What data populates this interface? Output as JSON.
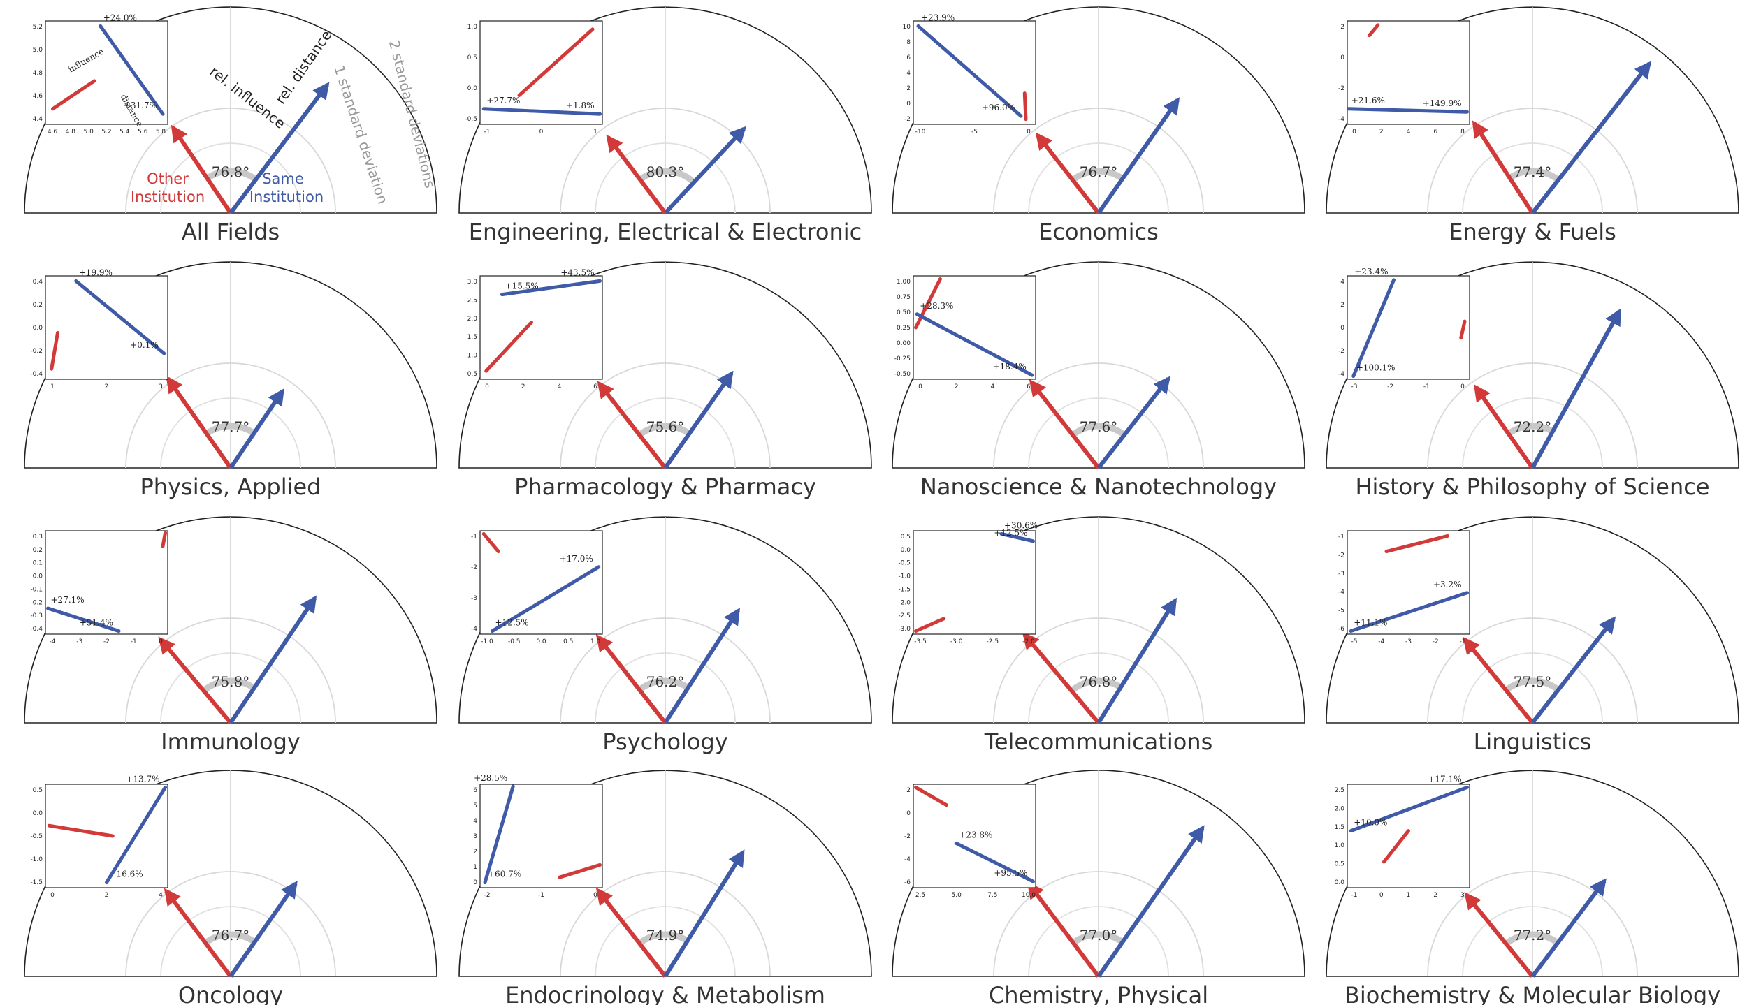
{
  "colors": {
    "other_institution": "#d23a3a",
    "same_institution": "#3f5aa6",
    "arc": "#222222",
    "guide": "#cccccc",
    "deviation_text": "#9a9a9a"
  },
  "legend": {
    "other_line1": "Other",
    "other_line2": "Institution",
    "same_line1": "Same",
    "same_line2": "Institution",
    "rel_influence": "rel. influence",
    "rel_distance": "rel. distance",
    "one_sd": "1 standard deviation",
    "two_sd": "2 standard deviations",
    "inset_influence": "influence",
    "inset_distance": "distance"
  },
  "chart_data": [
    {
      "type": "polar-arrows",
      "title": "All Fields",
      "angle_label": "76.8°",
      "other_deg": 124,
      "other_len": 0.5,
      "same_deg": 53,
      "same_len": 0.78,
      "inset": {
        "xticks": [
          "4.6",
          "4.8",
          "5.0",
          "5.2",
          "5.4",
          "5.6",
          "5.8"
        ],
        "yticks": [
          "4.4",
          "4.6",
          "4.8",
          "5.0",
          "5.2"
        ],
        "red_line": [
          [
            0.06,
            0.85
          ],
          [
            0.4,
            0.58
          ]
        ],
        "blue_line": [
          [
            0.45,
            0.05
          ],
          [
            0.96,
            0.9
          ]
        ],
        "pct": [
          "+24.0%",
          "+31.7%"
        ]
      }
    },
    {
      "type": "polar-arrows",
      "title": "Engineering, Electrical & Electronic",
      "angle_label": "80.3°",
      "other_deg": 127,
      "other_len": 0.46,
      "same_deg": 47,
      "same_len": 0.56,
      "inset": {
        "xticks": [
          "-1",
          "0",
          "1"
        ],
        "yticks": [
          "-0.5",
          "0.0",
          "0.5",
          "1.0"
        ],
        "red_line": [
          [
            0.32,
            0.72
          ],
          [
            0.92,
            0.08
          ]
        ],
        "blue_line": [
          [
            0.03,
            0.85
          ],
          [
            0.98,
            0.9
          ]
        ],
        "pct": [
          "+27.7%",
          "+1.8%"
        ]
      }
    },
    {
      "type": "polar-arrows",
      "title": "Economics",
      "angle_label": "76.7°",
      "other_deg": 128,
      "other_len": 0.48,
      "same_deg": 55,
      "same_len": 0.67,
      "inset": {
        "xticks": [
          "-10",
          "-5",
          "0"
        ],
        "yticks": [
          "-2",
          "0",
          "2",
          "4",
          "6",
          "8",
          "10"
        ],
        "red_line": [
          [
            0.91,
            0.7
          ],
          [
            0.92,
            0.95
          ]
        ],
        "blue_line": [
          [
            0.04,
            0.05
          ],
          [
            0.88,
            0.92
          ]
        ],
        "pct": [
          "+23.9%",
          "+96.0%"
        ]
      }
    },
    {
      "type": "polar-arrows",
      "title": "Energy & Fuels",
      "angle_label": "77.4°",
      "other_deg": 123,
      "other_len": 0.52,
      "same_deg": 52,
      "same_len": 0.92,
      "inset": {
        "xticks": [
          "0",
          "2",
          "4",
          "6",
          "8"
        ],
        "yticks": [
          "-4",
          "-2",
          "0",
          "2"
        ],
        "red_line": [
          [
            0.18,
            0.14
          ],
          [
            0.25,
            0.04
          ]
        ],
        "blue_line": [
          [
            0.01,
            0.85
          ],
          [
            0.98,
            0.88
          ]
        ],
        "pct": [
          "+21.6%",
          "+149.9%"
        ]
      }
    },
    {
      "type": "polar-arrows",
      "title": "Physics, Applied",
      "angle_label": "77.7°",
      "other_deg": 125,
      "other_len": 0.53,
      "same_deg": 56,
      "same_len": 0.45,
      "inset": {
        "xticks": [
          "1",
          "2",
          "3"
        ],
        "yticks": [
          "-0.4",
          "-0.2",
          "0.0",
          "0.2",
          "0.4"
        ],
        "red_line": [
          [
            0.05,
            0.9
          ],
          [
            0.1,
            0.55
          ]
        ],
        "blue_line": [
          [
            0.25,
            0.05
          ],
          [
            0.97,
            0.75
          ]
        ],
        "pct": [
          "+19.9%",
          "+0.1%"
        ]
      }
    },
    {
      "type": "polar-arrows",
      "title": "Pharmacology & Pharmacy",
      "angle_label": "75.6°",
      "other_deg": 128,
      "other_len": 0.52,
      "same_deg": 55,
      "same_len": 0.56,
      "inset": {
        "xticks": [
          "0",
          "2",
          "4",
          "6"
        ],
        "yticks": [
          "0.5",
          "1.0",
          "1.5",
          "2.0",
          "2.5",
          "3.0"
        ],
        "red_line": [
          [
            0.05,
            0.92
          ],
          [
            0.42,
            0.45
          ]
        ],
        "blue_line": [
          [
            0.18,
            0.18
          ],
          [
            0.98,
            0.05
          ]
        ],
        "pct": [
          "+15.5%",
          "+43.5%"
        ]
      }
    },
    {
      "type": "polar-arrows",
      "title": "Nanoscience & Nanotechnology",
      "angle_label": "77.6°",
      "other_deg": 128,
      "other_len": 0.53,
      "same_deg": 52,
      "same_len": 0.55,
      "inset": {
        "xticks": [
          "0",
          "2",
          "4",
          "6"
        ],
        "yticks": [
          "-0.50",
          "-0.25",
          "0.00",
          "0.25",
          "0.50",
          "0.75",
          "1.00"
        ],
        "red_line": [
          [
            0.02,
            0.5
          ],
          [
            0.22,
            0.03
          ]
        ],
        "blue_line": [
          [
            0.03,
            0.37
          ],
          [
            0.97,
            0.96
          ]
        ],
        "pct": [
          "+28.3%",
          "+18.4%"
        ]
      }
    },
    {
      "type": "polar-arrows",
      "title": "History & Philosophy of Science",
      "angle_label": "72.2°",
      "other_deg": 125,
      "other_len": 0.48,
      "same_deg": 61,
      "same_len": 0.87,
      "inset": {
        "xticks": [
          "-3",
          "-2",
          "-1",
          "0"
        ],
        "yticks": [
          "-4",
          "-2",
          "0",
          "2",
          "4"
        ],
        "red_line": [
          [
            0.93,
            0.6
          ],
          [
            0.96,
            0.44
          ]
        ],
        "blue_line": [
          [
            0.05,
            0.97
          ],
          [
            0.38,
            0.04
          ]
        ],
        "pct": [
          "+100.1%",
          "+23.4%"
        ]
      }
    },
    {
      "type": "polar-arrows",
      "title": "Immunology",
      "angle_label": "75.8°",
      "other_deg": 130,
      "other_len": 0.53,
      "same_deg": 56,
      "same_len": 0.73,
      "inset": {
        "xticks": [
          "-4",
          "-3",
          "-2",
          "-1",
          "0"
        ],
        "yticks": [
          "-0.4",
          "-0.3",
          "-0.2",
          "-0.1",
          "0.0",
          "0.1",
          "0.2",
          "0.3"
        ],
        "red_line": [
          [
            0.96,
            0.15
          ],
          [
            0.98,
            0.02
          ]
        ],
        "blue_line": [
          [
            0.02,
            0.75
          ],
          [
            0.6,
            0.97
          ]
        ],
        "pct": [
          "+27.1%",
          "+51.4%"
        ]
      }
    },
    {
      "type": "polar-arrows",
      "title": "Psychology",
      "angle_label": "76.2°",
      "other_deg": 128,
      "other_len": 0.53,
      "same_deg": 57,
      "same_len": 0.65,
      "inset": {
        "xticks": [
          "-1.0",
          "-0.5",
          "0.0",
          "0.5",
          "1.0"
        ],
        "yticks": [
          "-4",
          "-3",
          "-2",
          "-1"
        ],
        "red_line": [
          [
            0.03,
            0.03
          ],
          [
            0.15,
            0.2
          ]
        ],
        "blue_line": [
          [
            0.1,
            0.97
          ],
          [
            0.97,
            0.35
          ]
        ],
        "pct": [
          "+12.5%",
          "+17.0%"
        ]
      }
    },
    {
      "type": "polar-arrows",
      "title": "Telecommunications",
      "angle_label": "76.8°",
      "other_deg": 130,
      "other_len": 0.56,
      "same_deg": 58,
      "same_len": 0.7,
      "inset": {
        "xticks": [
          "-3.5",
          "-3.0",
          "-2.5",
          "-2.0"
        ],
        "yticks": [
          "-3.0",
          "-2.5",
          "-2.0",
          "-1.5",
          "-1.0",
          "-0.5",
          "0.0",
          "0.5"
        ],
        "red_line": [
          [
            0.02,
            0.97
          ],
          [
            0.25,
            0.85
          ]
        ],
        "blue_line": [
          [
            0.72,
            0.03
          ],
          [
            0.98,
            0.1
          ]
        ],
        "pct": [
          "+30.6%",
          "+12.5%"
        ]
      }
    },
    {
      "type": "polar-arrows",
      "title": "Linguistics",
      "angle_label": "77.5°",
      "other_deg": 129,
      "other_len": 0.52,
      "same_deg": 52,
      "same_len": 0.64,
      "inset": {
        "xticks": [
          "-5",
          "-4",
          "-3",
          "-2",
          "-1"
        ],
        "yticks": [
          "-6",
          "-5",
          "-4",
          "-3",
          "-2",
          "-1"
        ],
        "red_line": [
          [
            0.32,
            0.2
          ],
          [
            0.82,
            0.05
          ]
        ],
        "blue_line": [
          [
            0.03,
            0.97
          ],
          [
            0.98,
            0.6
          ]
        ],
        "pct": [
          "+11.1%",
          "+3.2%"
        ]
      }
    },
    {
      "type": "polar-arrows",
      "title": "Oncology",
      "angle_label": "76.7°",
      "other_deg": 127,
      "other_len": 0.52,
      "same_deg": 55,
      "same_len": 0.55,
      "inset": {
        "xticks": [
          "0",
          "2",
          "4"
        ],
        "yticks": [
          "-1.5",
          "-1.0",
          "-0.5",
          "0.0",
          "0.5"
        ],
        "red_line": [
          [
            0.03,
            0.4
          ],
          [
            0.55,
            0.5
          ]
        ],
        "blue_line": [
          [
            0.5,
            0.95
          ],
          [
            0.98,
            0.03
          ]
        ],
        "pct": [
          "+16.6%",
          "+13.7%"
        ]
      }
    },
    {
      "type": "polar-arrows",
      "title": "Endocrinology & Metabolism",
      "angle_label": "74.9°",
      "other_deg": 128,
      "other_len": 0.53,
      "same_deg": 58,
      "same_len": 0.71,
      "inset": {
        "xticks": [
          "-2",
          "-1",
          "0"
        ],
        "yticks": [
          "0",
          "1",
          "2",
          "3",
          "4",
          "5",
          "6"
        ],
        "red_line": [
          [
            0.65,
            0.9
          ],
          [
            0.98,
            0.78
          ]
        ],
        "blue_line": [
          [
            0.04,
            0.95
          ],
          [
            0.27,
            0.02
          ]
        ],
        "pct": [
          "+60.7%",
          "+28.5%"
        ]
      }
    },
    {
      "type": "polar-arrows",
      "title": "Chemistry, Physical",
      "angle_label": "77.0°",
      "other_deg": 127,
      "other_len": 0.56,
      "same_deg": 55,
      "same_len": 0.88,
      "inset": {
        "xticks": [
          "2.5",
          "5.0",
          "7.5",
          "10.0"
        ],
        "yticks": [
          "-6",
          "-4",
          "-2",
          "0",
          "2"
        ],
        "red_line": [
          [
            0.02,
            0.03
          ],
          [
            0.27,
            0.2
          ]
        ],
        "blue_line": [
          [
            0.35,
            0.57
          ],
          [
            0.98,
            0.94
          ]
        ],
        "pct": [
          "+23.8%",
          "+95.5%"
        ]
      }
    },
    {
      "type": "polar-arrows",
      "title": "Biochemistry & Molecular Biology",
      "angle_label": "77.2°",
      "other_deg": 129,
      "other_len": 0.51,
      "same_deg": 53,
      "same_len": 0.58,
      "inset": {
        "xticks": [
          "-1",
          "0",
          "1",
          "2",
          "3"
        ],
        "yticks": [
          "0.0",
          "0.5",
          "1.0",
          "1.5",
          "2.0",
          "2.5"
        ],
        "red_line": [
          [
            0.3,
            0.75
          ],
          [
            0.5,
            0.45
          ]
        ],
        "blue_line": [
          [
            0.03,
            0.45
          ],
          [
            0.98,
            0.03
          ]
        ],
        "pct": [
          "+10.0%",
          "+17.1%"
        ]
      }
    }
  ]
}
